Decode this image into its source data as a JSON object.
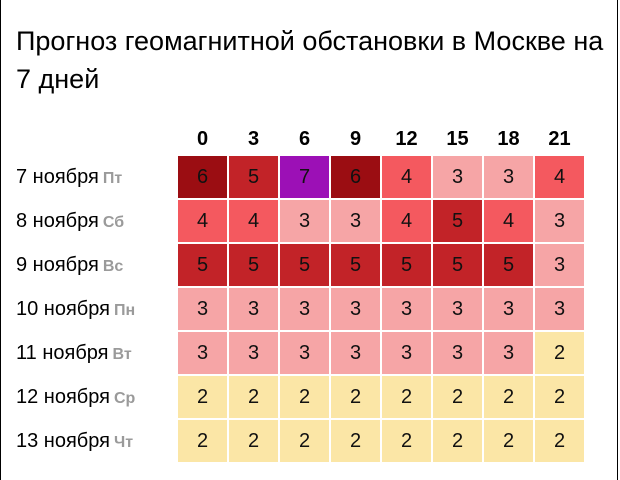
{
  "title": "Прогноз геомагнитной обстановки в Москве на 7 дней",
  "hours": [
    "0",
    "3",
    "6",
    "9",
    "12",
    "15",
    "18",
    "21"
  ],
  "days": [
    {
      "date": "7 ноября",
      "weekday": "Пт",
      "values": [
        6,
        5,
        7,
        6,
        4,
        3,
        3,
        4
      ]
    },
    {
      "date": "8 ноября",
      "weekday": "Сб",
      "values": [
        4,
        4,
        3,
        3,
        4,
        5,
        4,
        3
      ]
    },
    {
      "date": "9 ноября",
      "weekday": "Вс",
      "values": [
        5,
        5,
        5,
        5,
        5,
        5,
        5,
        3
      ]
    },
    {
      "date": "10 ноября",
      "weekday": "Пн",
      "values": [
        3,
        3,
        3,
        3,
        3,
        3,
        3,
        3
      ]
    },
    {
      "date": "11 ноября",
      "weekday": "Вт",
      "values": [
        3,
        3,
        3,
        3,
        3,
        3,
        3,
        2
      ]
    },
    {
      "date": "12 ноября",
      "weekday": "Ср",
      "values": [
        2,
        2,
        2,
        2,
        2,
        2,
        2,
        2
      ]
    },
    {
      "date": "13 ноября",
      "weekday": "Чт",
      "values": [
        2,
        2,
        2,
        2,
        2,
        2,
        2,
        2
      ]
    }
  ],
  "level_colors": {
    "2": "#fbe6a6",
    "3": "#f6a5a6",
    "4": "#f4595f",
    "5": "#c22328",
    "6": "#9b0d12",
    "7": "#9c10b6"
  }
}
